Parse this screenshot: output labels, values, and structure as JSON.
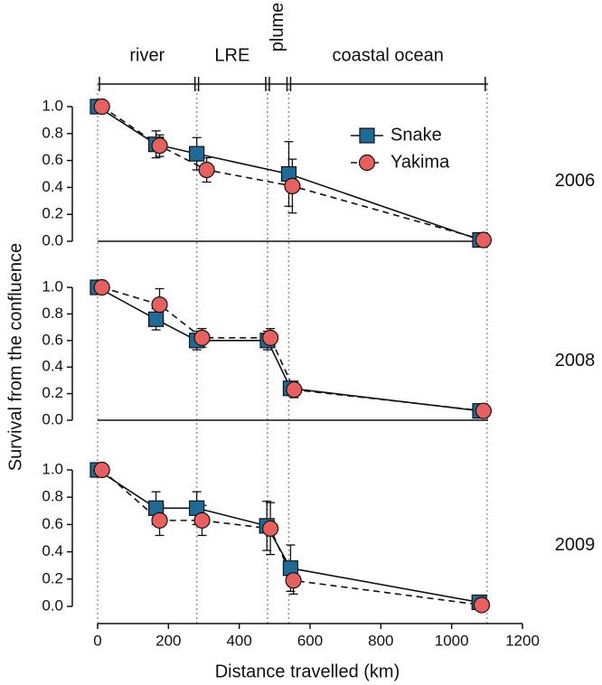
{
  "xlabel": "Distance travelled (km)",
  "ylabel": "Survival from the confluence",
  "regions": [
    {
      "label": "river",
      "start": 0,
      "end": 280
    },
    {
      "label": "LRE",
      "start": 280,
      "end": 480
    },
    {
      "label": "plume",
      "start": 480,
      "end": 540
    },
    {
      "label": "coastal ocean",
      "start": 540,
      "end": 1100
    }
  ],
  "chart_data": [
    {
      "type": "line",
      "panel_label": "2006",
      "legend": "upper right",
      "xlim": [
        0,
        1200
      ],
      "ylim": [
        0,
        1
      ],
      "yticks": [
        {
          "value": 0,
          "label": "0.0"
        },
        {
          "value": 0.2,
          "label": "0.2"
        },
        {
          "value": 0.4,
          "label": "0.4"
        },
        {
          "value": 0.6,
          "label": "0.6"
        },
        {
          "value": 0.8,
          "label": "0.8"
        },
        {
          "value": 1,
          "label": "1.0"
        }
      ],
      "series": [
        {
          "name": "Snake",
          "color": "#1f6b97",
          "marker": "square",
          "linestyle": "solid",
          "x": [
            0,
            165,
            280,
            540,
            1080
          ],
          "values": [
            1.0,
            0.72,
            0.65,
            0.5,
            0.01
          ],
          "errors": [
            null,
            0.1,
            0.12,
            0.24,
            null
          ]
        },
        {
          "name": "Yakima",
          "color": "#e8605d",
          "marker": "circle",
          "linestyle": "dashed",
          "x": [
            12,
            175,
            308,
            550,
            1090
          ],
          "values": [
            1.0,
            0.71,
            0.53,
            0.41,
            0.01
          ],
          "errors": [
            null,
            0.08,
            0.09,
            0.2,
            null
          ]
        }
      ]
    },
    {
      "type": "line",
      "panel_label": "2008",
      "xlim": [
        0,
        1200
      ],
      "ylim": [
        0,
        1
      ],
      "yticks": [
        {
          "value": 0,
          "label": "0.0"
        },
        {
          "value": 0.2,
          "label": "0.2"
        },
        {
          "value": 0.4,
          "label": "0.4"
        },
        {
          "value": 0.6,
          "label": "0.6"
        },
        {
          "value": 0.8,
          "label": "0.8"
        },
        {
          "value": 1,
          "label": "1.0"
        }
      ],
      "series": [
        {
          "name": "Snake",
          "color": "#1f6b97",
          "marker": "square",
          "linestyle": "solid",
          "x": [
            0,
            165,
            280,
            480,
            545,
            1080
          ],
          "values": [
            1.0,
            0.76,
            0.6,
            0.6,
            0.24,
            0.07
          ],
          "errors": [
            null,
            0.08,
            0.07,
            0.07,
            0.05,
            null
          ]
        },
        {
          "name": "Yakima",
          "color": "#e8605d",
          "marker": "circle",
          "linestyle": "dashed",
          "x": [
            12,
            175,
            295,
            488,
            555,
            1090
          ],
          "values": [
            1.0,
            0.87,
            0.62,
            0.62,
            0.23,
            0.07
          ],
          "errors": [
            null,
            0.12,
            0.07,
            0.07,
            0.06,
            null
          ]
        }
      ]
    },
    {
      "type": "line",
      "panel_label": "2009",
      "xlim": [
        0,
        1200
      ],
      "ylim": [
        0,
        1
      ],
      "xticks": [
        0,
        200,
        400,
        600,
        800,
        1000,
        1200
      ],
      "yticks": [
        {
          "value": 0,
          "label": "0.0"
        },
        {
          "value": 0.2,
          "label": "0.2"
        },
        {
          "value": 0.4,
          "label": "0.4"
        },
        {
          "value": 0.6,
          "label": "0.6"
        },
        {
          "value": 0.8,
          "label": "0.8"
        },
        {
          "value": 1,
          "label": "1.0"
        }
      ],
      "series": [
        {
          "name": "Snake",
          "color": "#1f6b97",
          "marker": "square",
          "linestyle": "solid",
          "x": [
            0,
            165,
            280,
            478,
            545,
            1078
          ],
          "values": [
            1.0,
            0.72,
            0.72,
            0.59,
            0.28,
            0.03
          ],
          "errors": [
            null,
            0.12,
            0.12,
            0.18,
            0.17,
            null
          ]
        },
        {
          "name": "Yakima",
          "color": "#e8605d",
          "marker": "circle",
          "linestyle": "dashed",
          "x": [
            12,
            175,
            295,
            488,
            553,
            1085
          ],
          "values": [
            1.0,
            0.63,
            0.63,
            0.57,
            0.19,
            0.01
          ],
          "errors": [
            null,
            0.11,
            0.11,
            0.19,
            0.1,
            null
          ]
        }
      ]
    }
  ]
}
